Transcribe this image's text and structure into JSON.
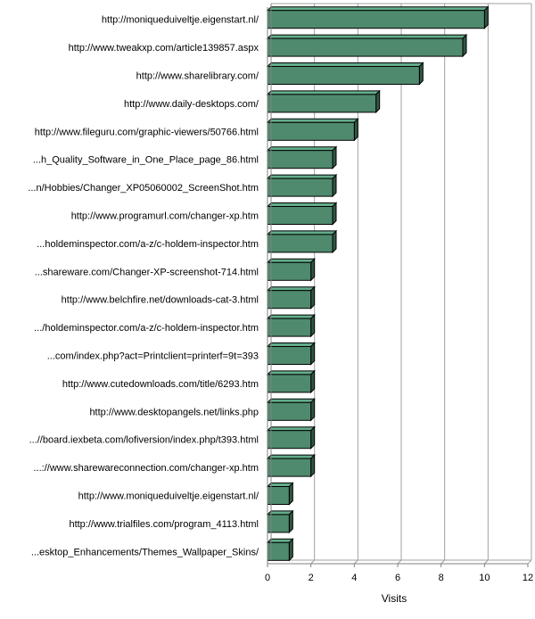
{
  "chart_data": {
    "type": "bar",
    "orientation": "horizontal",
    "xlabel": "Visits",
    "xlim": [
      0,
      12
    ],
    "xticks": [
      0,
      2,
      4,
      6,
      8,
      10,
      12
    ],
    "grid": true,
    "bar_color": "#4f8a6e",
    "categories": [
      "http://moniqueduiveltje.eigenstart.nl/",
      "http://www.tweakxp.com/article139857.aspx",
      "http://www.sharelibrary.com/",
      "http://www.daily-desktops.com/",
      "http://www.fileguru.com/graphic-viewers/50766.html",
      "...h_Quality_Software_in_One_Place_page_86.html",
      "...n/Hobbies/Changer_XP05060002_ScreenShot.htm",
      "http://www.programurl.com/changer-xp.htm",
      "...holdeminspector.com/a-z/c-holdem-inspector.htm",
      "...shareware.com/Changer-XP-screenshot-714.html",
      "http://www.belchfire.net/downloads-cat-3.html",
      ".../holdeminspector.com/a-z/c-holdem-inspector.htm",
      "...com/index.php?act=Printclient=printerf=9t=393",
      "http://www.cutedownloads.com/title/6293.htm",
      "http://www.desktopangels.net/links.php",
      "...//board.iexbeta.com/lofiversion/index.php/t393.html",
      "...://www.sharewareconnection.com/changer-xp.htm",
      "http://www.moniqueduiveltje.eigenstart.nl/",
      "http://www.trialfiles.com/program_4113.html",
      "...esktop_Enhancements/Themes_Wallpaper_Skins/"
    ],
    "values": [
      10,
      9,
      7,
      5,
      4,
      3,
      3,
      3,
      3,
      2,
      2,
      2,
      2,
      2,
      2,
      2,
      2,
      1,
      1,
      1
    ]
  }
}
